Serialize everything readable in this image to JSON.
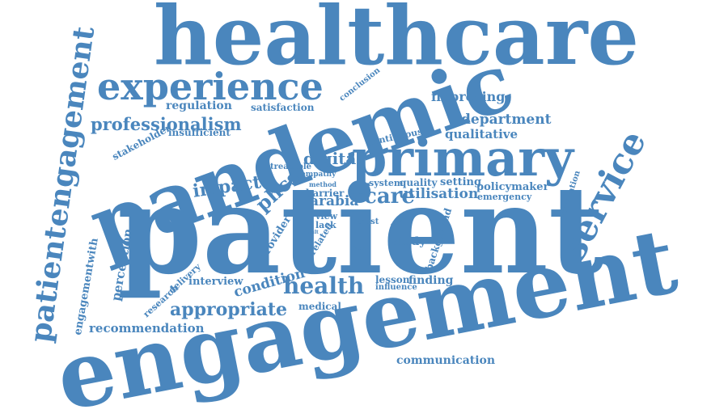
{
  "theme": {
    "word_color": "#4a86bd",
    "background": "#ffffff"
  },
  "words": [
    {
      "id": "healthcare",
      "text": "healthcare"
    },
    {
      "id": "experience",
      "text": "experience"
    },
    {
      "id": "pandemic",
      "text": "pandemic"
    },
    {
      "id": "primary",
      "text": "primary"
    },
    {
      "id": "patient",
      "text": "patient"
    },
    {
      "id": "engagement",
      "text": "engagement"
    },
    {
      "id": "patientengagement",
      "text": "patientengagement"
    },
    {
      "id": "service",
      "text": "service"
    },
    {
      "id": "professionalism",
      "text": "professionalism"
    },
    {
      "id": "regulation",
      "text": "regulation"
    },
    {
      "id": "satisfaction",
      "text": "satisfaction"
    },
    {
      "id": "conclusion",
      "text": "conclusion"
    },
    {
      "id": "improving",
      "text": "improving"
    },
    {
      "id": "department",
      "text": "department"
    },
    {
      "id": "qualitative",
      "text": "qualitative"
    },
    {
      "id": "continuous",
      "text": "continuous"
    },
    {
      "id": "insufficient",
      "text": "insufficient"
    },
    {
      "id": "stakeholder",
      "text": "stakeholder"
    },
    {
      "id": "digital",
      "text": "digital"
    },
    {
      "id": "treatable",
      "text": "treatable"
    },
    {
      "id": "empathy",
      "text": "empathy"
    },
    {
      "id": "system",
      "text": "system"
    },
    {
      "id": "quality",
      "text": "quality"
    },
    {
      "id": "setting",
      "text": "setting"
    },
    {
      "id": "policymaker",
      "text": "policymaker"
    },
    {
      "id": "method",
      "text": "method"
    },
    {
      "id": "barrier",
      "text": "barrier"
    },
    {
      "id": "better",
      "text": "better"
    },
    {
      "id": "care",
      "text": "care"
    },
    {
      "id": "utilisation",
      "text": "utilisation"
    },
    {
      "id": "emergency",
      "text": "emergency"
    },
    {
      "id": "arabia",
      "text": "arabia"
    },
    {
      "id": "impact",
      "text": "impact"
    },
    {
      "id": "phcs",
      "text": "phcs"
    },
    {
      "id": "innovation",
      "text": "innovation"
    },
    {
      "id": "view",
      "text": "view"
    },
    {
      "id": "lack",
      "text": "lack"
    },
    {
      "id": "trust",
      "text": "trust"
    },
    {
      "id": "result",
      "text": "result"
    },
    {
      "id": "related",
      "text": "related"
    },
    {
      "id": "centre",
      "text": "centre"
    },
    {
      "id": "provider",
      "text": "provider"
    },
    {
      "id": "background",
      "text": "background"
    },
    {
      "id": "study",
      "text": "study"
    },
    {
      "id": "perception",
      "text": "perception"
    },
    {
      "id": "engagementwith",
      "text": "engagementwith"
    },
    {
      "id": "factor",
      "text": "factor"
    },
    {
      "id": "interview",
      "text": "interview"
    },
    {
      "id": "research",
      "text": "research"
    },
    {
      "id": "delivery",
      "text": "delivery"
    },
    {
      "id": "condition",
      "text": "condition"
    },
    {
      "id": "health",
      "text": "health"
    },
    {
      "id": "lesson",
      "text": "lesson"
    },
    {
      "id": "finding",
      "text": "finding"
    },
    {
      "id": "influence",
      "text": "influence"
    },
    {
      "id": "appropriate",
      "text": "appropriate"
    },
    {
      "id": "medical",
      "text": "medical"
    },
    {
      "id": "recommendation",
      "text": "recommendation"
    },
    {
      "id": "communication",
      "text": "communication"
    }
  ]
}
